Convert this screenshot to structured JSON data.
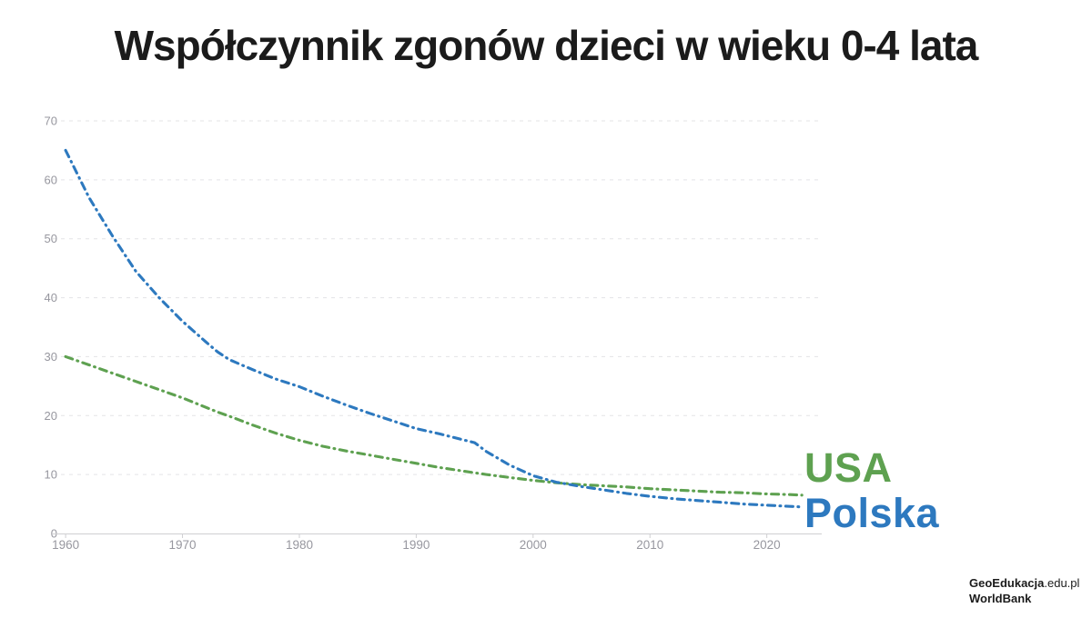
{
  "title": "Współczynnik zgonów dzieci w wieku 0-4 lata",
  "colors": {
    "title": "#1b1b1b",
    "background": "#ffffff",
    "grid": "#e3e3e6",
    "axis": "#cfcfd2",
    "tick_label": "#97979f",
    "usa": "#5ea150",
    "polska": "#2d79bf"
  },
  "attribution": {
    "line1_bold": "GeoEdukacja",
    "line1_suffix": ".edu.pl",
    "line2": "WorldBank"
  },
  "chart_data": {
    "type": "line",
    "title": "Współczynnik zgonów dzieci w wieku 0-4 lata",
    "xlabel": "",
    "ylabel": "",
    "xlim": [
      1958.9,
      2024.7
    ],
    "ylim": [
      0,
      70
    ],
    "xticks": [
      1960,
      1970,
      1980,
      1990,
      2000,
      2010,
      2020
    ],
    "yticks": [
      0,
      10,
      20,
      30,
      40,
      50,
      60,
      70
    ],
    "grid": "horizontal-dashed",
    "legend": "series-labels-at-line-ends-right",
    "line_style": "dash-dot",
    "x": [
      1960,
      1962,
      1964,
      1966,
      1968,
      1970,
      1972,
      1973,
      1974,
      1976,
      1978,
      1980,
      1982,
      1984,
      1986,
      1988,
      1990,
      1992,
      1994,
      1995,
      1996,
      1998,
      2000,
      2002,
      2004,
      2006,
      2008,
      2010,
      2012,
      2014,
      2016,
      2018,
      2020,
      2022,
      2023
    ],
    "series": [
      {
        "name": "USA",
        "color": "#5ea150",
        "values": [
          30,
          28.6,
          27.2,
          25.8,
          24.4,
          23.0,
          21.4,
          20.6,
          19.9,
          18.4,
          17.0,
          15.8,
          14.8,
          14.0,
          13.3,
          12.6,
          11.9,
          11.2,
          10.6,
          10.3,
          10.0,
          9.5,
          9.0,
          8.6,
          8.3,
          8.1,
          7.9,
          7.6,
          7.4,
          7.2,
          7.0,
          6.9,
          6.7,
          6.6,
          6.5
        ]
      },
      {
        "name": "Polska",
        "color": "#2d79bf",
        "values": [
          65,
          57,
          50.5,
          44.5,
          40,
          36,
          32.5,
          30.8,
          29.5,
          27.8,
          26.2,
          24.9,
          23.3,
          21.8,
          20.4,
          19.1,
          17.8,
          16.9,
          15.9,
          15.4,
          13.9,
          11.6,
          9.8,
          8.7,
          8.0,
          7.4,
          6.8,
          6.3,
          5.9,
          5.6,
          5.3,
          5.0,
          4.8,
          4.6,
          4.5
        ]
      }
    ]
  }
}
